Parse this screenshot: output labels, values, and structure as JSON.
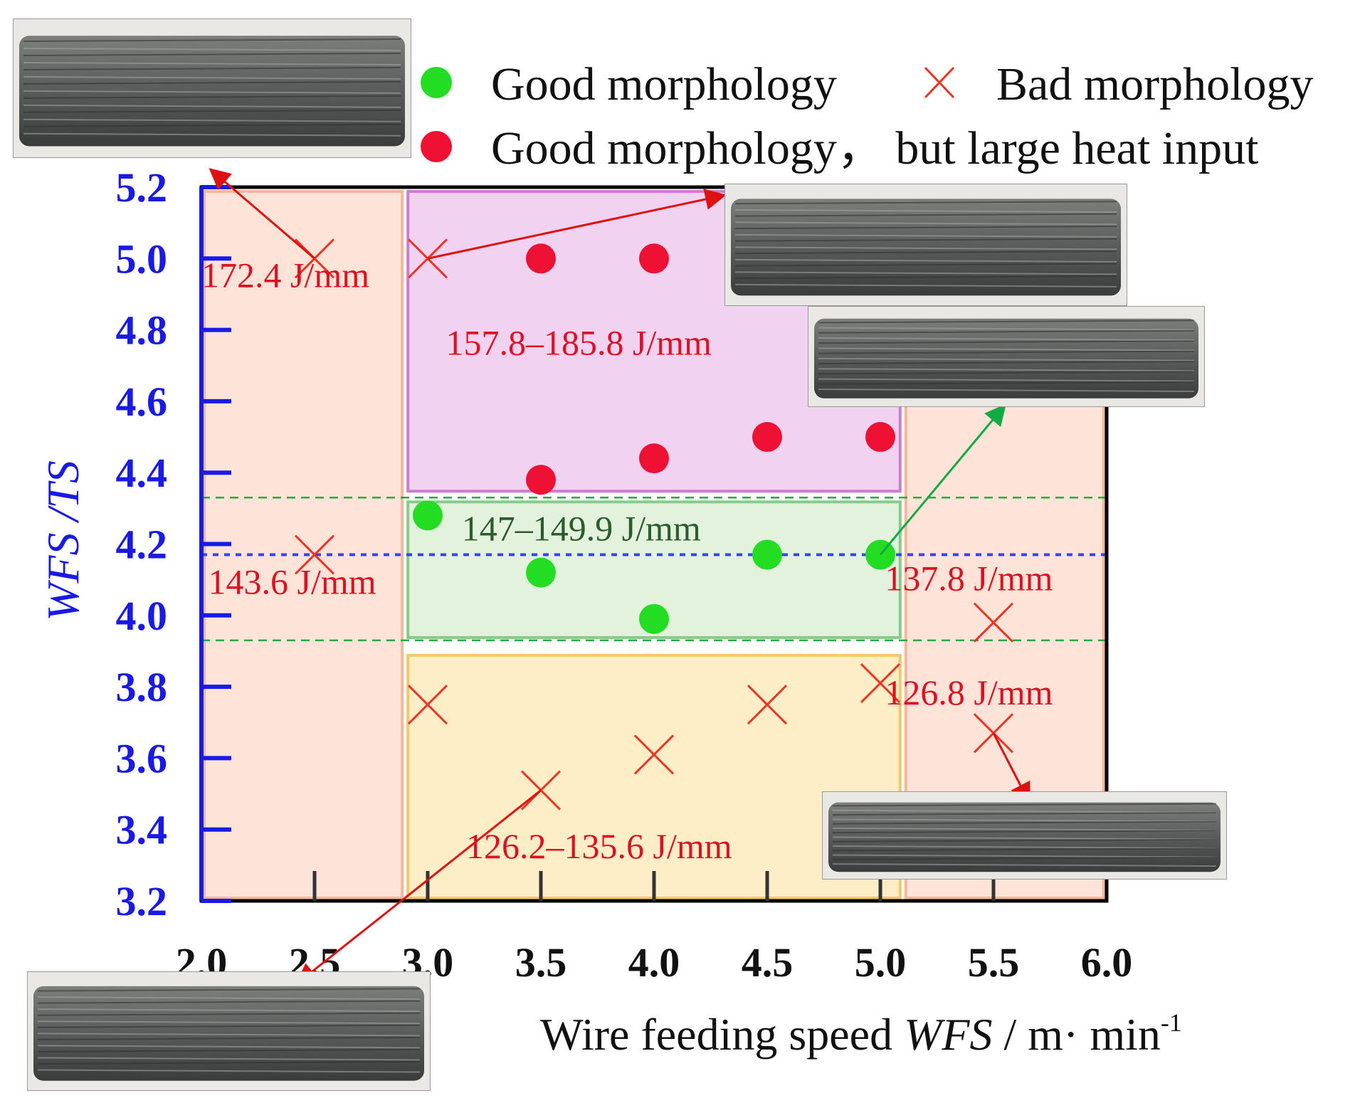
{
  "chart_data": {
    "type": "scatter",
    "title": "",
    "xlabel_prefix": "Wire feeding speed ",
    "xlabel_var": "WFS",
    "xlabel_unit": " / m·  min",
    "xlabel_sup": "-1",
    "ylabel": "WFS /TS",
    "xlim": [
      2.0,
      6.0
    ],
    "ylim": [
      3.2,
      5.2
    ],
    "x_ticks": [
      "2.0",
      "2.5",
      "3.0",
      "3.5",
      "4.0",
      "4.5",
      "5.0",
      "5.5",
      "6.0"
    ],
    "y_ticks": [
      "3.2",
      "3.4",
      "3.6",
      "3.8",
      "4.0",
      "4.2",
      "4.4",
      "4.6",
      "4.8",
      "5.0",
      "5.2"
    ],
    "grid": false,
    "legend_position": "top",
    "series": [
      {
        "name": "Good morphology",
        "marker": "circle",
        "color": "#22dd22",
        "points": [
          [
            3.0,
            4.28
          ],
          [
            3.5,
            4.12
          ],
          [
            4.0,
            3.99
          ],
          [
            4.5,
            4.17
          ],
          [
            5.0,
            4.17
          ]
        ]
      },
      {
        "name": "Bad morphology",
        "marker": "x",
        "color": "#ee3322",
        "points": [
          [
            2.5,
            5.0
          ],
          [
            3.0,
            5.0
          ],
          [
            2.5,
            4.17
          ],
          [
            3.0,
            3.75
          ],
          [
            3.5,
            3.51
          ],
          [
            4.0,
            3.61
          ],
          [
            4.5,
            3.75
          ],
          [
            5.0,
            3.81
          ],
          [
            5.5,
            3.98
          ],
          [
            5.5,
            3.67
          ]
        ]
      },
      {
        "name": "Good morphology，  but large heat input",
        "marker": "circle",
        "color": "#ee1133",
        "points": [
          [
            3.5,
            5.0
          ],
          [
            4.0,
            5.0
          ],
          [
            3.5,
            4.38
          ],
          [
            4.0,
            4.44
          ],
          [
            4.5,
            4.5
          ],
          [
            5.0,
            4.5
          ]
        ]
      }
    ],
    "regions": [
      {
        "x": [
          2.0,
          2.9
        ],
        "y": [
          3.2,
          5.2
        ],
        "fill": "#fde3d8",
        "stroke": "#f6b79a"
      },
      {
        "x": [
          2.9,
          5.1
        ],
        "y": [
          4.34,
          5.2
        ],
        "fill": "#f1d2f1",
        "stroke": "#d07ad0"
      },
      {
        "x": [
          2.9,
          5.1
        ],
        "y": [
          3.93,
          4.33
        ],
        "fill": "#e2f2dc",
        "stroke": "#86cc86"
      },
      {
        "x": [
          2.9,
          5.1
        ],
        "y": [
          3.2,
          3.9
        ],
        "fill": "#fdeec7",
        "stroke": "#f6c766"
      },
      {
        "x": [
          5.1,
          6.0
        ],
        "y": [
          3.2,
          5.2
        ],
        "fill": "#fde3d8",
        "stroke": "#f6b79a"
      }
    ],
    "reference_lines": [
      {
        "y": 4.33,
        "color": "#22aa44",
        "style": "dashed"
      },
      {
        "y": 3.93,
        "color": "#22aa44",
        "style": "dashed"
      },
      {
        "y": 4.17,
        "color": "#3344ee",
        "style": "dotted"
      }
    ],
    "annotations": [
      {
        "text": "172.4 J/mm",
        "x": 2.0,
        "y": 4.92,
        "color": "#dd1122"
      },
      {
        "text": "157.8–185.8 J/mm",
        "x": 3.08,
        "y": 4.73,
        "color": "#dd1122"
      },
      {
        "text": "147–149.9 J/mm",
        "x": 3.15,
        "y": 4.21,
        "color": "#2b5c2b"
      },
      {
        "text": "143.6 J/mm",
        "x": 2.03,
        "y": 4.06,
        "color": "#dd1122"
      },
      {
        "text": "137.8 J/mm",
        "x": 5.02,
        "y": 4.07,
        "color": "#dd1122"
      },
      {
        "text": "126.8 J/mm",
        "x": 5.02,
        "y": 3.75,
        "color": "#dd1122"
      },
      {
        "text": "126.2–135.6 J/mm",
        "x": 3.17,
        "y": 3.32,
        "color": "#dd1122"
      }
    ]
  },
  "photos": [
    {
      "name": "photo-top-left"
    },
    {
      "name": "photo-top-middle"
    },
    {
      "name": "photo-middle-right"
    },
    {
      "name": "photo-bottom-right"
    },
    {
      "name": "photo-bottom-left"
    }
  ],
  "colors": {
    "y_axis": "#1a1ae6",
    "x_axis": "#000000",
    "tick_x": "#333333"
  }
}
